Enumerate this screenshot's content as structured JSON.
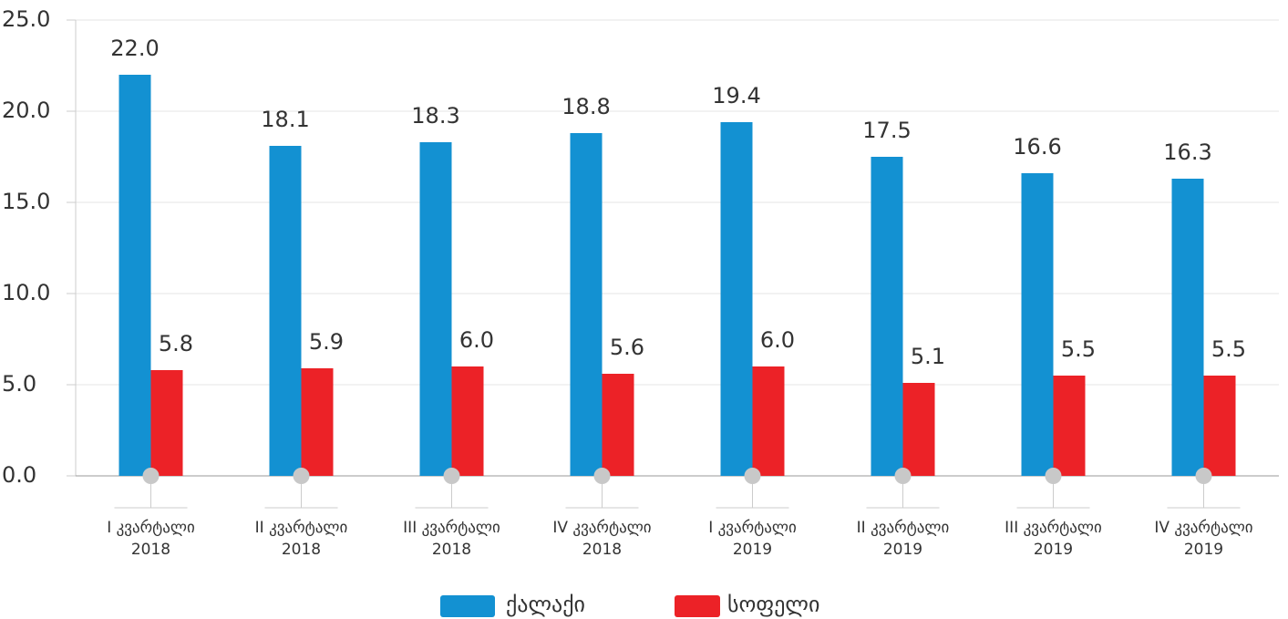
{
  "chart_data": {
    "type": "bar",
    "categories": [
      [
        "I კვარტალი",
        "2018"
      ],
      [
        "II კვარტალი",
        "2018"
      ],
      [
        "III კვარტალი",
        "2018"
      ],
      [
        "IV კვარტალი",
        "2018"
      ],
      [
        "I კვარტალი",
        "2019"
      ],
      [
        "II კვარტალი",
        "2019"
      ],
      [
        "III კვარტალი",
        "2019"
      ],
      [
        "IV კვარტალი",
        "2019"
      ]
    ],
    "series": [
      {
        "name": "ქალაქი",
        "color": "#1391d2",
        "values": [
          22.0,
          18.1,
          18.3,
          18.8,
          19.4,
          17.5,
          16.6,
          16.3
        ],
        "value_labels": [
          "22.0",
          "18.1",
          "18.3",
          "18.8",
          "19.4",
          "17.5",
          "16.6",
          "16.3"
        ]
      },
      {
        "name": "სოფელი",
        "color": "#ec2227",
        "values": [
          5.8,
          5.9,
          6.0,
          5.6,
          6.0,
          5.1,
          5.5,
          5.5
        ],
        "value_labels": [
          "5.8",
          "5.9",
          "6.0",
          "5.6",
          "6.0",
          "5.1",
          "5.5",
          "5.5"
        ]
      }
    ],
    "ylim": [
      0,
      25
    ],
    "yticks": [
      {
        "value": 0,
        "label": "0.0"
      },
      {
        "value": 5,
        "label": "5.0"
      },
      {
        "value": 10,
        "label": "10.0"
      },
      {
        "value": 15,
        "label": "15.0"
      },
      {
        "value": 20,
        "label": "20.0"
      },
      {
        "value": 25,
        "label": "25.0"
      }
    ],
    "grid": true,
    "legend": "bottom"
  }
}
